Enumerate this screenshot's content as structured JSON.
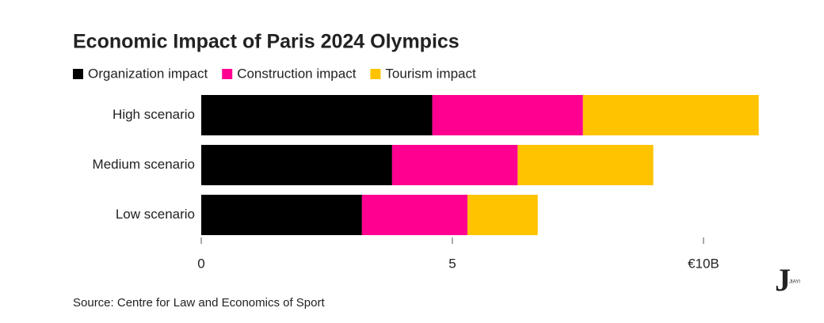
{
  "chart_data": {
    "type": "stacked-bar-horizontal",
    "title": "Economic Impact of Paris 2024 Olympics",
    "categories": [
      "High scenario",
      "Medium scenario",
      "Low scenario"
    ],
    "series": [
      {
        "name": "Organization impact",
        "color": "#000000",
        "values": [
          4.6,
          3.8,
          3.2
        ]
      },
      {
        "name": "Construction impact",
        "color": "#ff0090",
        "values": [
          3.0,
          2.5,
          2.1
        ]
      },
      {
        "name": "Tourism impact",
        "color": "#ffc300",
        "values": [
          3.5,
          2.7,
          1.4
        ]
      }
    ],
    "xlim": [
      0,
      11.5
    ],
    "xticks": [
      0,
      5,
      {
        "value": 10,
        "label": "€10B"
      }
    ],
    "source": "Source: Centre for Law and Economics of Sport",
    "watermark": "JIAYI"
  }
}
